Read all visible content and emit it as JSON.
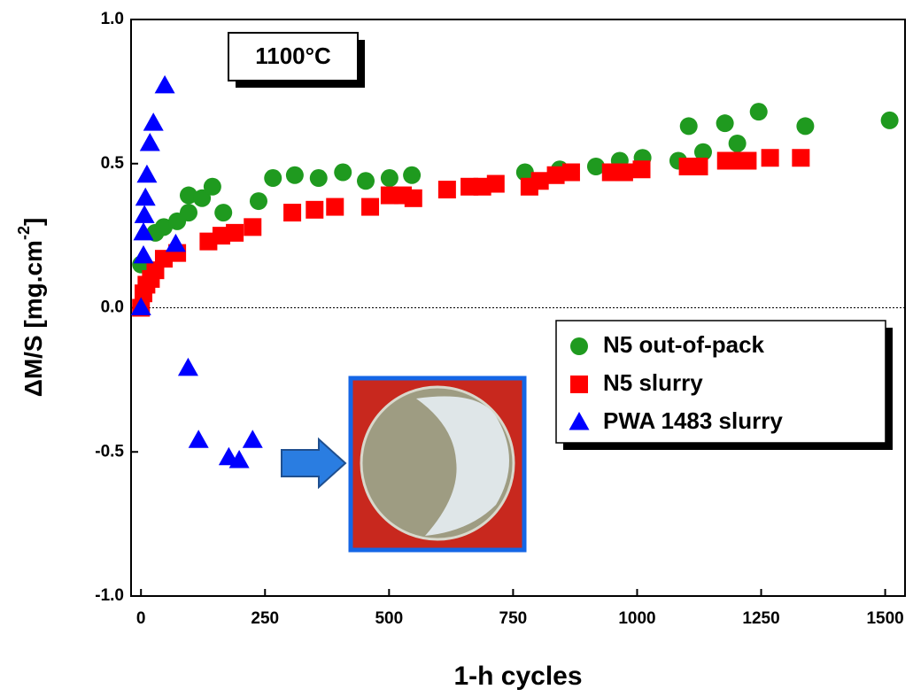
{
  "chart_data": {
    "type": "scatter",
    "xlabel": "1-h cycles",
    "ylabel": {
      "text": "ΔM/S [mg.cm",
      "superscript": "-2",
      "suffix": "]"
    },
    "annotation": "1100°C",
    "xlim": [
      -20,
      1540
    ],
    "ylim": [
      -1.0,
      1.0
    ],
    "xticks": [
      0,
      250,
      500,
      750,
      1000,
      1250,
      1500
    ],
    "yticks": [
      {
        "value": -1.0,
        "label": "-1.0"
      },
      -0.5,
      {
        "value": 0.0,
        "label": "0.0"
      },
      0.5,
      {
        "value": 1.0,
        "label": "1.0"
      }
    ],
    "reference_line": 0,
    "legend": "right",
    "series": [
      {
        "name": "N5 out-of-pack",
        "color": "#1f9a1f",
        "marker": "circle",
        "x": [
          0,
          29,
          46,
          73,
          96,
          96,
          123,
          144,
          166,
          237,
          266,
          310,
          358,
          407,
          453,
          501,
          546,
          774,
          844,
          917,
          965,
          1011,
          1083,
          1104,
          1133,
          1177,
          1202,
          1245,
          1339,
          1509
        ],
        "values": [
          0.15,
          0.26,
          0.28,
          0.3,
          0.33,
          0.39,
          0.38,
          0.42,
          0.33,
          0.37,
          0.45,
          0.46,
          0.45,
          0.47,
          0.44,
          0.45,
          0.46,
          0.47,
          0.48,
          0.49,
          0.51,
          0.52,
          0.51,
          0.63,
          0.54,
          0.64,
          0.57,
          0.68,
          0.63,
          0.65
        ]
      },
      {
        "name": "N5 slurry",
        "color": "#ff0000",
        "marker": "square",
        "x": [
          0,
          5,
          11,
          20,
          29,
          46,
          73,
          136,
          162,
          189,
          225,
          305,
          350,
          391,
          462,
          501,
          528,
          549,
          617,
          662,
          688,
          715,
          783,
          804,
          836,
          867,
          947,
          974,
          1009,
          1102,
          1125,
          1179,
          1205,
          1223,
          1268,
          1330
        ],
        "values": [
          0,
          0.05,
          0.08,
          0.1,
          0.13,
          0.17,
          0.19,
          0.23,
          0.25,
          0.26,
          0.28,
          0.33,
          0.34,
          0.35,
          0.35,
          0.39,
          0.39,
          0.38,
          0.41,
          0.42,
          0.42,
          0.43,
          0.42,
          0.44,
          0.46,
          0.47,
          0.47,
          0.47,
          0.48,
          0.49,
          0.49,
          0.51,
          0.51,
          0.51,
          0.52,
          0.52
        ]
      },
      {
        "name": "PWA 1483 slurry",
        "color": "#0000ff",
        "marker": "triangle",
        "x": [
          0,
          5,
          5,
          7,
          9,
          12,
          18,
          25,
          48,
          70,
          95,
          116,
          177,
          198,
          225
        ],
        "values": [
          0,
          0.18,
          0.26,
          0.32,
          0.38,
          0.46,
          0.57,
          0.64,
          0.77,
          0.22,
          -0.21,
          -0.46,
          -0.52,
          -0.53,
          -0.46
        ]
      }
    ]
  }
}
